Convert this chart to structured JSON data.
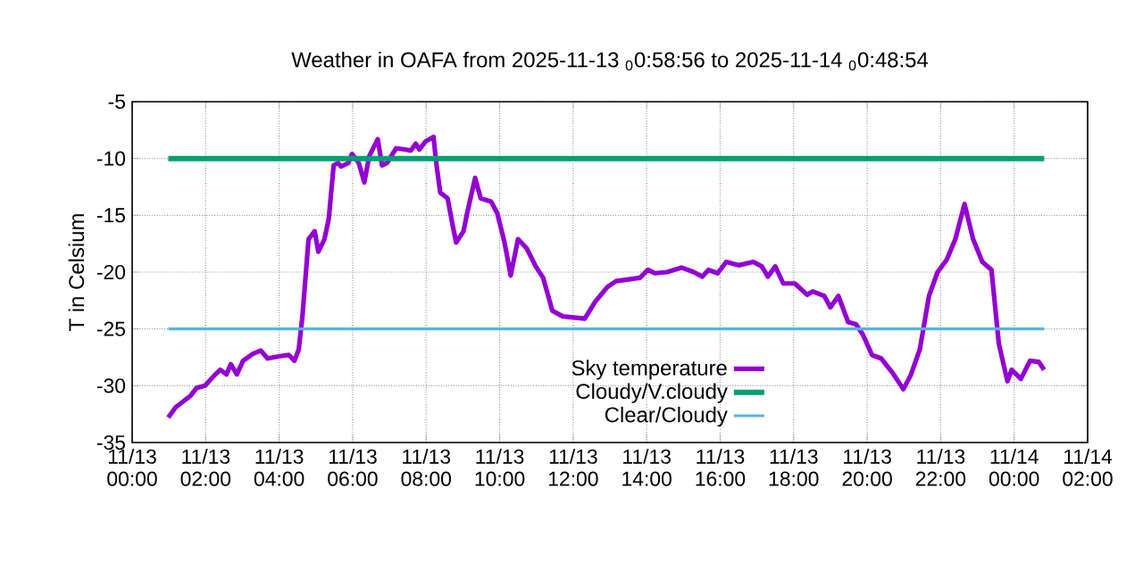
{
  "chart_data": {
    "type": "line",
    "title": "Weather in  OAFA from 2025-11-13 $_{0}$0:58:56 to 2025-11-14 $_{0}$0:48:54",
    "ylabel": "T in Celsium",
    "xlim": [
      "2025-11-13T00:00",
      "2025-11-14T02:00"
    ],
    "ylim": [
      -35,
      -5
    ],
    "xticks": [
      {
        "value": "2025-11-13T00:00",
        "label": "11/13 00:00"
      },
      {
        "value": "2025-11-13T02:00",
        "label": "11/13 02:00"
      },
      {
        "value": "2025-11-13T04:00",
        "label": "11/13 04:00"
      },
      {
        "value": "2025-11-13T06:00",
        "label": "11/13 06:00"
      },
      {
        "value": "2025-11-13T08:00",
        "label": "11/13 08:00"
      },
      {
        "value": "2025-11-13T10:00",
        "label": "11/13 10:00"
      },
      {
        "value": "2025-11-13T12:00",
        "label": "11/13 12:00"
      },
      {
        "value": "2025-11-13T14:00",
        "label": "11/13 14:00"
      },
      {
        "value": "2025-11-13T16:00",
        "label": "11/13 16:00"
      },
      {
        "value": "2025-11-13T18:00",
        "label": "11/13 18:00"
      },
      {
        "value": "2025-11-13T20:00",
        "label": "11/13 20:00"
      },
      {
        "value": "2025-11-13T22:00",
        "label": "11/13 22:00"
      },
      {
        "value": "2025-11-14T00:00",
        "label": "11/14 00:00"
      },
      {
        "value": "2025-11-14T02:00",
        "label": "11/14 02:00"
      }
    ],
    "yticks": [
      -35,
      -30,
      -25,
      -20,
      -15,
      -10,
      -5
    ],
    "grid": true,
    "legend": "bottom",
    "series": [
      {
        "name": "Sky temperature",
        "color": "#9400d3",
        "x": [
          "2025-11-13T00:59",
          "2025-11-13T01:11",
          "2025-11-13T01:35",
          "2025-11-13T01:45",
          "2025-11-13T01:59",
          "2025-11-13T02:14",
          "2025-11-13T02:24",
          "2025-11-13T02:34",
          "2025-11-13T02:41",
          "2025-11-13T02:51",
          "2025-11-13T03:01",
          "2025-11-13T03:17",
          "2025-11-13T03:30",
          "2025-11-13T03:41",
          "2025-11-13T04:01",
          "2025-11-13T04:16",
          "2025-11-13T04:25",
          "2025-11-13T04:32",
          "2025-11-13T04:38",
          "2025-11-13T04:43",
          "2025-11-13T04:48",
          "2025-11-13T04:58",
          "2025-11-13T05:04",
          "2025-11-13T05:14",
          "2025-11-13T05:21",
          "2025-11-13T05:29",
          "2025-11-13T05:36",
          "2025-11-13T05:41",
          "2025-11-13T05:53",
          "2025-11-13T05:59",
          "2025-11-13T06:10",
          "2025-11-13T06:19",
          "2025-11-13T06:27",
          "2025-11-13T06:41",
          "2025-11-13T06:48",
          "2025-11-13T06:56",
          "2025-11-13T07:11",
          "2025-11-13T07:25",
          "2025-11-13T07:35",
          "2025-11-13T07:43",
          "2025-11-13T07:49",
          "2025-11-13T07:59",
          "2025-11-13T08:12",
          "2025-11-13T08:17",
          "2025-11-13T08:23",
          "2025-11-13T08:35",
          "2025-11-13T08:43",
          "2025-11-13T08:49",
          "2025-11-13T09:01",
          "2025-11-13T09:07",
          "2025-11-13T09:20",
          "2025-11-13T09:29",
          "2025-11-13T09:46",
          "2025-11-13T09:56",
          "2025-11-13T10:08",
          "2025-11-13T10:18",
          "2025-11-13T10:30",
          "2025-11-13T10:44",
          "2025-11-13T10:59",
          "2025-11-13T11:11",
          "2025-11-13T11:26",
          "2025-11-13T11:43",
          "2025-11-13T12:19",
          "2025-11-13T12:36",
          "2025-11-13T12:56",
          "2025-11-13T13:10",
          "2025-11-13T13:49",
          "2025-11-13T14:02",
          "2025-11-13T14:14",
          "2025-11-13T14:33",
          "2025-11-13T14:57",
          "2025-11-13T15:17",
          "2025-11-13T15:31",
          "2025-11-13T15:41",
          "2025-11-13T15:56",
          "2025-11-13T16:10",
          "2025-11-13T16:30",
          "2025-11-13T16:54",
          "2025-11-13T17:08",
          "2025-11-13T17:18",
          "2025-11-13T17:30",
          "2025-11-13T17:43",
          "2025-11-13T18:02",
          "2025-11-13T18:22",
          "2025-11-13T18:31",
          "2025-11-13T18:50",
          "2025-11-13T19:00",
          "2025-11-13T19:13",
          "2025-11-13T19:29",
          "2025-11-13T19:42",
          "2025-11-13T19:53",
          "2025-11-13T20:08",
          "2025-11-13T20:23",
          "2025-11-13T20:42",
          "2025-11-13T20:59",
          "2025-11-13T21:11",
          "2025-11-13T21:26",
          "2025-11-13T21:41",
          "2025-11-13T21:55",
          "2025-11-13T22:10",
          "2025-11-13T22:24",
          "2025-11-13T22:39",
          "2025-11-13T22:53",
          "2025-11-13T23:08",
          "2025-11-13T23:23",
          "2025-11-13T23:35",
          "2025-11-13T23:49",
          "2025-11-13T23:56",
          "2025-11-14T00:11",
          "2025-11-14T00:26",
          "2025-11-14T00:40",
          "2025-11-14T00:49"
        ],
        "values": [
          -32.8,
          -31.9,
          -30.9,
          -30.2,
          -30.0,
          -29.1,
          -28.6,
          -29.0,
          -28.1,
          -29.0,
          -27.8,
          -27.2,
          -26.9,
          -27.6,
          -27.4,
          -27.3,
          -27.8,
          -26.8,
          -23.9,
          -20.5,
          -17.1,
          -16.4,
          -18.2,
          -17.1,
          -15.3,
          -10.6,
          -10.4,
          -10.7,
          -10.4,
          -9.6,
          -10.4,
          -12.1,
          -9.8,
          -8.3,
          -10.6,
          -10.4,
          -9.1,
          -9.2,
          -9.3,
          -8.7,
          -9.2,
          -8.5,
          -8.1,
          -10.6,
          -13.0,
          -13.5,
          -15.8,
          -17.4,
          -16.4,
          -14.8,
          -11.7,
          -13.5,
          -13.8,
          -14.8,
          -17.4,
          -20.3,
          -17.1,
          -17.9,
          -19.5,
          -20.5,
          -23.4,
          -23.9,
          -24.1,
          -22.6,
          -21.3,
          -20.8,
          -20.5,
          -19.8,
          -20.1,
          -20.0,
          -19.6,
          -20.0,
          -20.4,
          -19.8,
          -20.1,
          -19.1,
          -19.4,
          -19.1,
          -19.5,
          -20.4,
          -19.5,
          -21.0,
          -21.0,
          -22.0,
          -21.7,
          -22.1,
          -23.1,
          -22.1,
          -24.4,
          -24.6,
          -25.5,
          -27.3,
          -27.6,
          -28.9,
          -30.3,
          -29.1,
          -26.8,
          -22.1,
          -20.0,
          -18.9,
          -17.1,
          -14.0,
          -17.1,
          -19.1,
          -19.8,
          -26.3,
          -29.6,
          -28.6,
          -29.4,
          -27.8,
          -27.9,
          -28.6
        ]
      },
      {
        "name": "Cloudy/V.cloudy",
        "color": "#009e73",
        "x": [
          "2025-11-13T00:59",
          "2025-11-14T00:49"
        ],
        "values": [
          -10,
          -10
        ]
      },
      {
        "name": "Clear/Cloudy",
        "color": "#56b4e9",
        "x": [
          "2025-11-13T00:59",
          "2025-11-14T00:49"
        ],
        "values": [
          -25,
          -25
        ]
      }
    ]
  }
}
